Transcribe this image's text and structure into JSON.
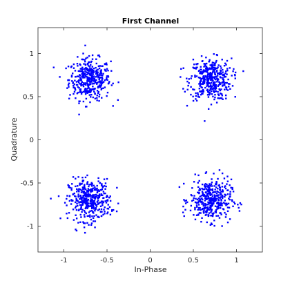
{
  "chart_data": {
    "type": "scatter",
    "title": "First Channel",
    "xlabel": "In-Phase",
    "ylabel": "Quadrature",
    "xlim": [
      -1.3,
      1.3
    ],
    "ylim": [
      -1.3,
      1.3
    ],
    "xticks": [
      -1,
      -0.5,
      0,
      0.5,
      1
    ],
    "xtick_labels": [
      "-1",
      "-0.5",
      "0",
      "0.5",
      "1"
    ],
    "yticks": [
      -1,
      -0.5,
      0,
      0.5,
      1
    ],
    "ytick_labels": [
      "-1",
      "-0.5",
      "0",
      "0.5",
      "1"
    ],
    "grid": false,
    "marker_color": "#0000ff",
    "clusters": [
      {
        "center": [
          -0.7,
          0.7
        ],
        "spread": 0.12,
        "points": 400
      },
      {
        "center": [
          0.7,
          0.7
        ],
        "spread": 0.12,
        "points": 400
      },
      {
        "center": [
          -0.7,
          -0.7
        ],
        "spread": 0.12,
        "points": 400
      },
      {
        "center": [
          0.7,
          -0.7
        ],
        "spread": 0.12,
        "points": 400
      }
    ]
  }
}
